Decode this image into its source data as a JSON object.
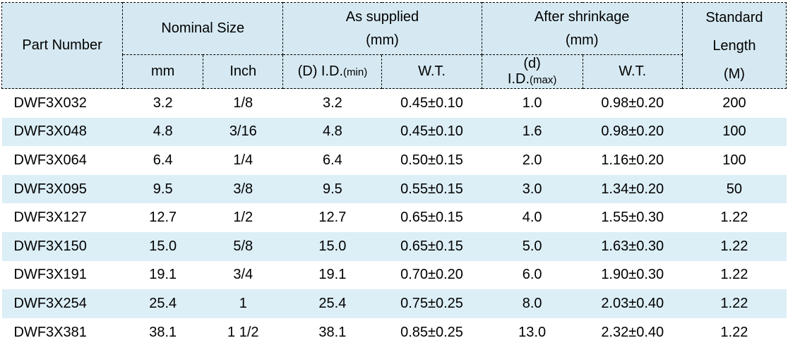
{
  "colors": {
    "header_bg": "#d6e9f2",
    "row_alt_bg": "#dceef6",
    "border": "#000000",
    "text": "#000000",
    "page_bg": "#ffffff"
  },
  "table": {
    "header": {
      "part_number": "Part Number",
      "nominal_size": "Nominal Size",
      "as_supplied_line1": "As supplied",
      "as_supplied_line2": "(mm)",
      "after_shrinkage_line1": "After shrinkage",
      "after_shrinkage_line2": "(mm)",
      "standard_length_line1": "Standard",
      "standard_length_line2": "Length",
      "standard_length_line3": "(M)",
      "sub": {
        "mm": "mm",
        "inch": "Inch",
        "id_min_main": "(D) I.D.",
        "id_min_small": "(min)",
        "wt_supplied": "W.T.",
        "id_max_line1": "(d)",
        "id_max_main": "I.D.",
        "id_max_small": "(max)",
        "wt_shrunk": "W.T."
      }
    },
    "rows": [
      {
        "part": "DWF3X032",
        "mm": "3.2",
        "inch": "1/8",
        "id_min": "3.2",
        "wt_supplied": "0.45±0.10",
        "id_max": "1.0",
        "wt_shrunk": "0.98±0.20",
        "length": "200"
      },
      {
        "part": "DWF3X048",
        "mm": "4.8",
        "inch": "3/16",
        "id_min": "4.8",
        "wt_supplied": "0.45±0.10",
        "id_max": "1.6",
        "wt_shrunk": "0.98±0.20",
        "length": "100"
      },
      {
        "part": "DWF3X064",
        "mm": "6.4",
        "inch": "1/4",
        "id_min": "6.4",
        "wt_supplied": "0.50±0.15",
        "id_max": "2.0",
        "wt_shrunk": "1.16±0.20",
        "length": "100"
      },
      {
        "part": "DWF3X095",
        "mm": "9.5",
        "inch": "3/8",
        "id_min": "9.5",
        "wt_supplied": "0.55±0.15",
        "id_max": "3.0",
        "wt_shrunk": "1.34±0.20",
        "length": "50"
      },
      {
        "part": "DWF3X127",
        "mm": "12.7",
        "inch": "1/2",
        "id_min": "12.7",
        "wt_supplied": "0.65±0.15",
        "id_max": "4.0",
        "wt_shrunk": "1.55±0.30",
        "length": "1.22"
      },
      {
        "part": "DWF3X150",
        "mm": "15.0",
        "inch": "5/8",
        "id_min": "15.0",
        "wt_supplied": "0.65±0.15",
        "id_max": "5.0",
        "wt_shrunk": "1.63±0.30",
        "length": "1.22"
      },
      {
        "part": "DWF3X191",
        "mm": "19.1",
        "inch": "3/4",
        "id_min": "19.1",
        "wt_supplied": "0.70±0.20",
        "id_max": "6.0",
        "wt_shrunk": "1.90±0.30",
        "length": "1.22"
      },
      {
        "part": "DWF3X254",
        "mm": "25.4",
        "inch": "1",
        "id_min": "25.4",
        "wt_supplied": "0.75±0.25",
        "id_max": "8.0",
        "wt_shrunk": "2.03±0.40",
        "length": "1.22"
      },
      {
        "part": "DWF3X381",
        "mm": "38.1",
        "inch": "1 1/2",
        "id_min": "38.1",
        "wt_supplied": "0.85±0.25",
        "id_max": "13.0",
        "wt_shrunk": "2.32±0.40",
        "length": "1.22"
      }
    ]
  }
}
